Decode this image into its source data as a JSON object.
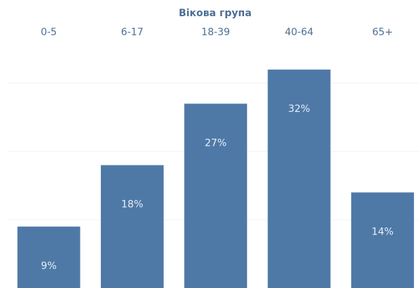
{
  "chart_data": {
    "type": "bar",
    "title": "Вікова група",
    "categories": [
      "0-5",
      "6-17",
      "18-39",
      "40-64",
      "65+"
    ],
    "values": [
      9,
      18,
      27,
      32,
      14
    ],
    "value_labels": [
      "9%",
      "18%",
      "27%",
      "32%",
      "14%"
    ],
    "color": "#4e79a7",
    "ylim": [
      0,
      36
    ],
    "yticks": [
      10,
      20,
      30
    ],
    "grid": true
  }
}
